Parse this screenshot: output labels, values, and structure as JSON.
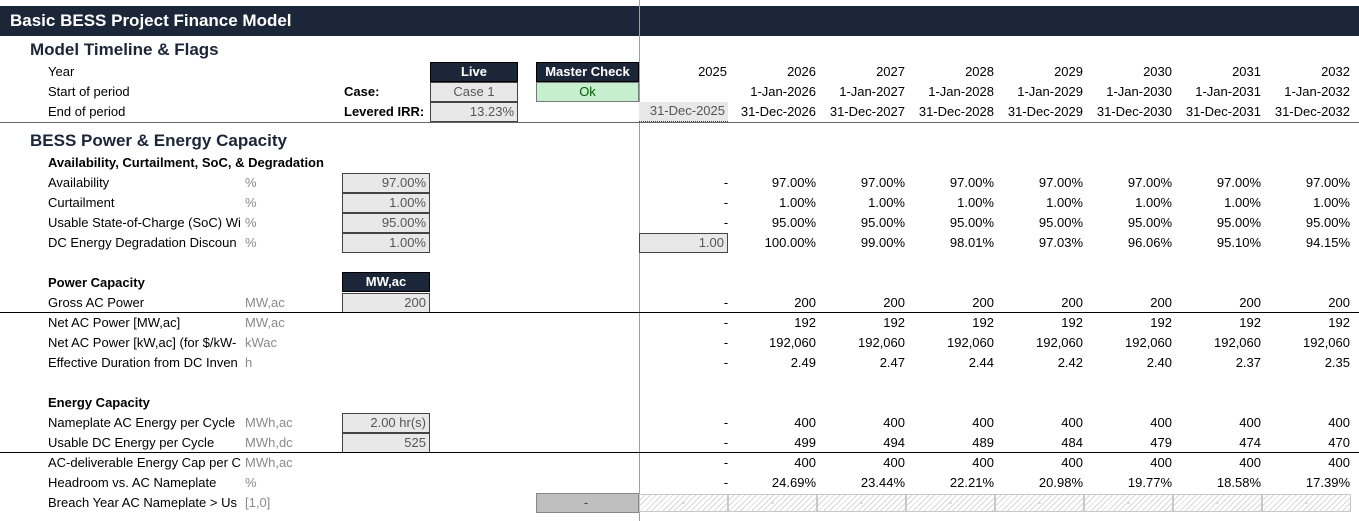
{
  "title": "Basic BESS Project Finance Model",
  "timeline": {
    "heading": "Model Timeline & Flags",
    "labels": [
      "Year",
      "Start of period",
      "End of period"
    ],
    "case_label": "Case:",
    "irr_label": "Levered IRR:",
    "live_header": "Live",
    "case_value": "Case 1",
    "irr_value": "13.23%",
    "master_check_header": "Master Check",
    "master_check_value": "Ok",
    "years": [
      "2025",
      "2026",
      "2027",
      "2028",
      "2029",
      "2030",
      "2031",
      "2032"
    ],
    "start": [
      "",
      "1-Jan-2026",
      "1-Jan-2027",
      "1-Jan-2028",
      "1-Jan-2029",
      "1-Jan-2030",
      "1-Jan-2031",
      "1-Jan-2032"
    ],
    "end": [
      "31-Dec-2025",
      "31-Dec-2026",
      "31-Dec-2027",
      "31-Dec-2028",
      "31-Dec-2029",
      "31-Dec-2030",
      "31-Dec-2031",
      "31-Dec-2032"
    ]
  },
  "capacity": {
    "heading": "BESS Power & Energy Capacity",
    "availability_section": "Availability, Curtailment, SoC, & Degradation",
    "power_section": "Power Capacity",
    "power_header": "MW,ac",
    "energy_section": "Energy Capacity",
    "rows": [
      {
        "label": "Availability",
        "unit": "%",
        "input": "97.00%",
        "values": [
          "-",
          "97.00%",
          "97.00%",
          "97.00%",
          "97.00%",
          "97.00%",
          "97.00%",
          "97.00%"
        ]
      },
      {
        "label": "Curtailment",
        "unit": "%",
        "input": "1.00%",
        "values": [
          "-",
          "1.00%",
          "1.00%",
          "1.00%",
          "1.00%",
          "1.00%",
          "1.00%",
          "1.00%"
        ]
      },
      {
        "label": "Usable State-of-Charge (SoC) Wi",
        "unit": "%",
        "input": "95.00%",
        "values": [
          "-",
          "95.00%",
          "95.00%",
          "95.00%",
          "95.00%",
          "95.00%",
          "95.00%",
          "95.00%"
        ]
      },
      {
        "label": "DC Energy Degradation Discoun",
        "unit": "%",
        "input": "1.00%",
        "values": [
          "1.00",
          "100.00%",
          "99.00%",
          "98.01%",
          "97.03%",
          "96.06%",
          "95.10%",
          "94.15%"
        ]
      },
      {
        "label": "Gross AC Power",
        "unit": "MW,ac",
        "input": "200",
        "values": [
          "-",
          "200",
          "200",
          "200",
          "200",
          "200",
          "200",
          "200"
        ]
      },
      {
        "label": "Net AC Power [MW,ac]",
        "unit": "MW,ac",
        "input": "",
        "values": [
          "-",
          "192",
          "192",
          "192",
          "192",
          "192",
          "192",
          "192"
        ]
      },
      {
        "label": "Net AC Power [kW,ac] (for $/kW-",
        "unit": "kWac",
        "input": "",
        "values": [
          "-",
          "192,060",
          "192,060",
          "192,060",
          "192,060",
          "192,060",
          "192,060",
          "192,060"
        ]
      },
      {
        "label": "Effective Duration from DC Inven",
        "unit": "h",
        "input": "",
        "values": [
          "-",
          "2.49",
          "2.47",
          "2.44",
          "2.42",
          "2.40",
          "2.37",
          "2.35"
        ]
      },
      {
        "label": "Nameplate AC Energy per Cycle",
        "unit": "MWh,ac",
        "input": "2.00 hr(s)",
        "values": [
          "-",
          "400",
          "400",
          "400",
          "400",
          "400",
          "400",
          "400"
        ]
      },
      {
        "label": "Usable DC Energy per Cycle",
        "unit": "MWh,dc",
        "input": "525",
        "values": [
          "-",
          "499",
          "494",
          "489",
          "484",
          "479",
          "474",
          "470"
        ]
      },
      {
        "label": "AC-deliverable Energy Cap per C",
        "unit": "MWh,ac",
        "input": "",
        "values": [
          "-",
          "400",
          "400",
          "400",
          "400",
          "400",
          "400",
          "400"
        ]
      },
      {
        "label": "Headroom vs. AC Nameplate",
        "unit": "%",
        "input": "",
        "values": [
          "-",
          "24.69%",
          "23.44%",
          "22.21%",
          "20.98%",
          "19.77%",
          "18.58%",
          "17.39%"
        ]
      },
      {
        "label": "Breach Year AC Nameplate > Us",
        "unit": "[1,0]",
        "input": "-",
        "values": [
          "-",
          "-",
          "-",
          "-",
          "-",
          "-",
          "-",
          "-"
        ]
      }
    ]
  }
}
